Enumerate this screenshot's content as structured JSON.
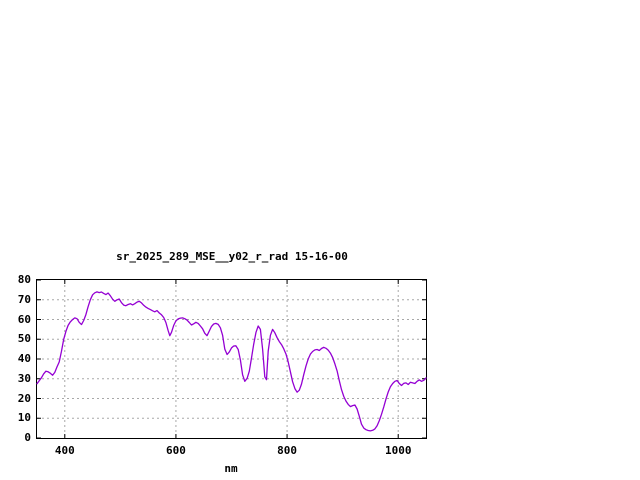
{
  "window": {
    "background": "#ffffff"
  },
  "chart_data": {
    "type": "line",
    "title": "sr_2025_289_MSE__y02_r_rad 15-16-00",
    "xlabel": "nm",
    "ylabel": "",
    "xlim": [
      350,
      1050
    ],
    "ylim": [
      0,
      80
    ],
    "x_ticks": [
      400,
      600,
      800,
      1000
    ],
    "y_ticks": [
      0,
      10,
      20,
      30,
      40,
      50,
      60,
      70,
      80
    ],
    "grid": true,
    "legend_position": "none",
    "style": {
      "line_color": "#9400d3",
      "grid_color": "#a8a8a8",
      "border_color": "#000000",
      "text_color": "#000000"
    },
    "series": [
      {
        "name": "sr_2025_289_MSE__y02_r_rad",
        "points": [
          [
            350,
            27.5
          ],
          [
            354,
            29.0
          ],
          [
            358,
            30.5
          ],
          [
            362,
            32.5
          ],
          [
            366,
            33.8
          ],
          [
            370,
            33.5
          ],
          [
            374,
            32.8
          ],
          [
            378,
            31.8
          ],
          [
            382,
            33.2
          ],
          [
            386,
            36.0
          ],
          [
            390,
            38.5
          ],
          [
            394,
            44.0
          ],
          [
            398,
            50.0
          ],
          [
            402,
            54.0
          ],
          [
            406,
            57.0
          ],
          [
            410,
            58.8
          ],
          [
            414,
            60.0
          ],
          [
            418,
            60.8
          ],
          [
            422,
            60.4
          ],
          [
            426,
            58.6
          ],
          [
            430,
            57.4
          ],
          [
            434,
            59.5
          ],
          [
            438,
            62.5
          ],
          [
            442,
            66.5
          ],
          [
            446,
            70.0
          ],
          [
            450,
            72.5
          ],
          [
            454,
            73.5
          ],
          [
            458,
            74.0
          ],
          [
            462,
            73.6
          ],
          [
            466,
            73.9
          ],
          [
            470,
            73.2
          ],
          [
            474,
            72.6
          ],
          [
            478,
            73.4
          ],
          [
            482,
            72.0
          ],
          [
            486,
            70.3
          ],
          [
            490,
            69.2
          ],
          [
            494,
            70.0
          ],
          [
            498,
            70.4
          ],
          [
            502,
            68.5
          ],
          [
            506,
            67.3
          ],
          [
            510,
            67.0
          ],
          [
            514,
            67.6
          ],
          [
            518,
            68.0
          ],
          [
            522,
            67.4
          ],
          [
            526,
            68.0
          ],
          [
            530,
            68.8
          ],
          [
            534,
            69.2
          ],
          [
            538,
            68.4
          ],
          [
            542,
            67.2
          ],
          [
            546,
            66.3
          ],
          [
            550,
            65.6
          ],
          [
            554,
            65.0
          ],
          [
            558,
            64.4
          ],
          [
            562,
            63.9
          ],
          [
            566,
            64.5
          ],
          [
            570,
            63.3
          ],
          [
            574,
            62.4
          ],
          [
            578,
            61.0
          ],
          [
            582,
            58.5
          ],
          [
            586,
            54.5
          ],
          [
            589,
            51.8
          ],
          [
            592,
            53.5
          ],
          [
            596,
            57.0
          ],
          [
            600,
            59.3
          ],
          [
            604,
            60.3
          ],
          [
            608,
            60.7
          ],
          [
            612,
            60.8
          ],
          [
            616,
            60.4
          ],
          [
            620,
            59.7
          ],
          [
            624,
            58.5
          ],
          [
            628,
            57.2
          ],
          [
            632,
            57.8
          ],
          [
            636,
            58.6
          ],
          [
            640,
            58.0
          ],
          [
            644,
            56.7
          ],
          [
            648,
            55.3
          ],
          [
            652,
            53.0
          ],
          [
            656,
            51.8
          ],
          [
            660,
            54.2
          ],
          [
            664,
            56.5
          ],
          [
            668,
            57.7
          ],
          [
            672,
            58.0
          ],
          [
            676,
            57.5
          ],
          [
            680,
            55.8
          ],
          [
            684,
            52.0
          ],
          [
            688,
            45.0
          ],
          [
            692,
            42.3
          ],
          [
            696,
            43.6
          ],
          [
            700,
            45.6
          ],
          [
            704,
            46.6
          ],
          [
            708,
            46.7
          ],
          [
            712,
            44.8
          ],
          [
            716,
            39.5
          ],
          [
            720,
            32.0
          ],
          [
            724,
            28.7
          ],
          [
            728,
            30.2
          ],
          [
            732,
            33.8
          ],
          [
            736,
            40.5
          ],
          [
            740,
            47.5
          ],
          [
            744,
            53.5
          ],
          [
            748,
            56.7
          ],
          [
            752,
            55.0
          ],
          [
            756,
            45.0
          ],
          [
            760,
            31.0
          ],
          [
            763,
            29.5
          ],
          [
            766,
            44.0
          ],
          [
            770,
            52.0
          ],
          [
            774,
            55.0
          ],
          [
            778,
            53.3
          ],
          [
            782,
            50.8
          ],
          [
            786,
            48.8
          ],
          [
            790,
            47.3
          ],
          [
            794,
            45.2
          ],
          [
            798,
            42.5
          ],
          [
            802,
            38.5
          ],
          [
            806,
            33.5
          ],
          [
            810,
            28.5
          ],
          [
            814,
            25.0
          ],
          [
            818,
            23.2
          ],
          [
            822,
            24.2
          ],
          [
            826,
            27.3
          ],
          [
            830,
            32.0
          ],
          [
            834,
            36.5
          ],
          [
            838,
            40.0
          ],
          [
            842,
            42.5
          ],
          [
            846,
            43.8
          ],
          [
            850,
            44.6
          ],
          [
            854,
            44.8
          ],
          [
            858,
            44.3
          ],
          [
            862,
            45.3
          ],
          [
            866,
            45.9
          ],
          [
            870,
            45.4
          ],
          [
            874,
            44.5
          ],
          [
            878,
            43.0
          ],
          [
            882,
            40.8
          ],
          [
            886,
            37.5
          ],
          [
            890,
            34.0
          ],
          [
            894,
            29.0
          ],
          [
            898,
            24.5
          ],
          [
            902,
            21.0
          ],
          [
            906,
            18.7
          ],
          [
            910,
            17.0
          ],
          [
            914,
            15.9
          ],
          [
            918,
            16.4
          ],
          [
            922,
            16.7
          ],
          [
            926,
            14.7
          ],
          [
            930,
            11.0
          ],
          [
            934,
            7.0
          ],
          [
            938,
            5.0
          ],
          [
            942,
            4.2
          ],
          [
            946,
            3.8
          ],
          [
            950,
            3.6
          ],
          [
            954,
            3.9
          ],
          [
            958,
            4.6
          ],
          [
            962,
            6.2
          ],
          [
            966,
            8.8
          ],
          [
            970,
            12.0
          ],
          [
            974,
            15.8
          ],
          [
            978,
            19.8
          ],
          [
            982,
            23.3
          ],
          [
            986,
            25.9
          ],
          [
            990,
            27.6
          ],
          [
            994,
            28.7
          ],
          [
            998,
            29.1
          ],
          [
            1002,
            27.6
          ],
          [
            1006,
            26.6
          ],
          [
            1010,
            27.7
          ],
          [
            1014,
            27.9
          ],
          [
            1018,
            27.1
          ],
          [
            1022,
            28.2
          ],
          [
            1026,
            27.9
          ],
          [
            1030,
            27.6
          ],
          [
            1034,
            28.7
          ],
          [
            1038,
            29.4
          ],
          [
            1042,
            28.7
          ],
          [
            1046,
            29.2
          ],
          [
            1050,
            30.4
          ]
        ]
      }
    ]
  }
}
